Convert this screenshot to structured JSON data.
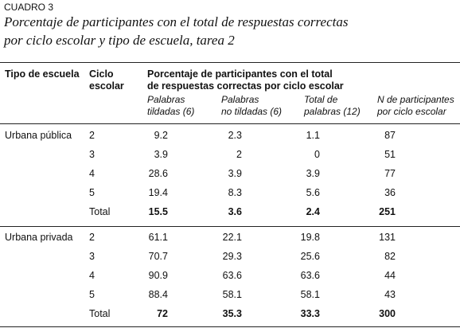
{
  "caption": "CUADRO 3",
  "title": [
    "Porcentaje de participantes con el total de respuestas correctas",
    "por ciclo escolar y tipo de escuela, tarea 2"
  ],
  "table": {
    "headers": {
      "school": "Tipo de escuela",
      "cycle": [
        "Ciclo",
        "escolar"
      ],
      "group": [
        "Porcentaje de participantes con el total",
        "de respuestas correctas por ciclo escolar"
      ],
      "columns": [
        [
          "Palabras",
          "tildadas (6)"
        ],
        [
          "Palabras",
          "no tildadas (6)"
        ],
        [
          "Total de",
          "palabras (12)"
        ],
        [
          "N de participantes",
          "por ciclo escolar"
        ]
      ]
    },
    "sections": [
      {
        "school": "Urbana pública",
        "rows": [
          [
            "2",
            "9.2",
            "2.3",
            "1.1",
            "87"
          ],
          [
            "3",
            "3.9",
            "2",
            "0",
            "51"
          ],
          [
            "4",
            "28.6",
            "3.9",
            "3.9",
            "77"
          ],
          [
            "5",
            "19.4",
            "8.3",
            "5.6",
            "36"
          ]
        ],
        "total": [
          "Total",
          "15.5",
          "3.6",
          "2.4",
          "251"
        ]
      },
      {
        "school": "Urbana privada",
        "rows": [
          [
            "2",
            "61.1",
            "22.1",
            "19.8",
            "131"
          ],
          [
            "3",
            "70.7",
            "29.3",
            "25.6",
            "82"
          ],
          [
            "4",
            "90.9",
            "63.6",
            "63.6",
            "44"
          ],
          [
            "5",
            "88.4",
            "58.1",
            "58.1",
            "43"
          ]
        ],
        "total": [
          "Total",
          "72",
          "35.3",
          "33.3",
          "300"
        ]
      }
    ]
  }
}
